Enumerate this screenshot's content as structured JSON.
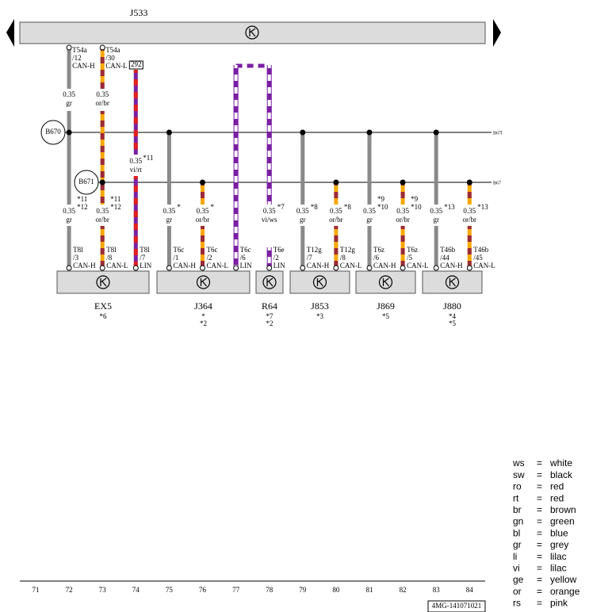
{
  "top_unit": {
    "label": "J533"
  },
  "splices": [
    {
      "label": "B670",
      "edge_label": "B67l"
    },
    {
      "label": "B671",
      "edge_label": "B67"
    }
  ],
  "wires": [
    {
      "top": [
        "T54a",
        "/12",
        "CAN-H"
      ],
      "upper": [
        "0.35",
        "gr"
      ],
      "lower": [
        "0.35",
        "gr"
      ],
      "notes": [
        "*11",
        "*12"
      ],
      "bottom": [
        "T8l",
        "/3",
        "CAN-H"
      ]
    },
    {
      "top": [
        "T54a",
        "/30",
        "CAN-L"
      ],
      "upper": [
        "0.35",
        "or/br"
      ],
      "lower": [
        "0.35",
        "or/br"
      ],
      "notes": [
        "*11",
        "*12"
      ],
      "bottom": [
        "T8l",
        "/8",
        "CAN-L"
      ]
    },
    {
      "top_box": "292",
      "upper": [
        "0.35",
        "vi/rt"
      ],
      "upper_notes": [
        "*11"
      ],
      "bottom": [
        "T8l",
        "/7",
        "LIN"
      ]
    },
    {
      "lower": [
        "0.35",
        "gr"
      ],
      "notes": [
        "*"
      ],
      "bottom": [
        "T6c",
        "/1",
        "CAN-H"
      ]
    },
    {
      "lower": [
        "0.35",
        "or/br"
      ],
      "notes": [
        "*"
      ],
      "bottom": [
        "T6c",
        "/2",
        "CAN-L"
      ]
    },
    {
      "bottom": [
        "T6c",
        "/6",
        "LIN"
      ]
    },
    {
      "lower": [
        "0.35",
        "vi/ws"
      ],
      "notes": [
        "*7"
      ],
      "bottom": [
        "T6e",
        "/2",
        "LIN"
      ]
    },
    {
      "lower": [
        "0.35",
        "gr"
      ],
      "notes": [
        "*8"
      ],
      "bottom": [
        "T12g",
        "/7",
        "CAN-H"
      ]
    },
    {
      "lower": [
        "0.35",
        "or/br"
      ],
      "notes": [
        "*8"
      ],
      "bottom": [
        "T12g",
        "/8",
        "CAN-L"
      ]
    },
    {
      "lower": [
        "0.35",
        "gr"
      ],
      "notes": [
        "*9",
        "*10"
      ],
      "bottom": [
        "T6z",
        "/6",
        "CAN-H"
      ]
    },
    {
      "lower": [
        "0.35",
        "or/br"
      ],
      "notes": [
        "*9",
        "*10"
      ],
      "bottom": [
        "T6z",
        "/5",
        "CAN-L"
      ]
    },
    {
      "lower": [
        "0.35",
        "gr"
      ],
      "notes": [
        "*13"
      ],
      "bottom": [
        "T46b",
        "/44",
        "CAN-H"
      ]
    },
    {
      "lower": [
        "0.35",
        "or/br"
      ],
      "notes": [
        "*13"
      ],
      "bottom": [
        "T46b",
        "/45",
        "CAN-L"
      ]
    }
  ],
  "components": [
    {
      "label": "EX5",
      "notes": [
        "*6"
      ]
    },
    {
      "label": "J364",
      "notes": [
        "*",
        "*2"
      ]
    },
    {
      "label": "R64",
      "notes": [
        "*7",
        "*2"
      ]
    },
    {
      "label": "J853",
      "notes": [
        "*3"
      ]
    },
    {
      "label": "J869",
      "notes": [
        "*5"
      ]
    },
    {
      "label": "J880",
      "notes": [
        "*4",
        "*5"
      ]
    }
  ],
  "legend": [
    [
      "ws",
      "=",
      "white"
    ],
    [
      "sw",
      "=",
      "black"
    ],
    [
      "ro",
      "=",
      "red"
    ],
    [
      "rt",
      "=",
      "red"
    ],
    [
      "br",
      "=",
      "brown"
    ],
    [
      "gn",
      "=",
      "green"
    ],
    [
      "bl",
      "=",
      "blue"
    ],
    [
      "gr",
      "=",
      "grey"
    ],
    [
      "li",
      "=",
      "lilac"
    ],
    [
      "vi",
      "=",
      "lilac"
    ],
    [
      "ge",
      "=",
      "yellow"
    ],
    [
      "or",
      "=",
      "orange"
    ],
    [
      "rs",
      "=",
      "pink"
    ]
  ],
  "columns": [
    "71",
    "72",
    "73",
    "74",
    "75",
    "76",
    "77",
    "78",
    "79",
    "80",
    "81",
    "82",
    "83",
    "84"
  ],
  "doc_id": "4MG-141071021"
}
